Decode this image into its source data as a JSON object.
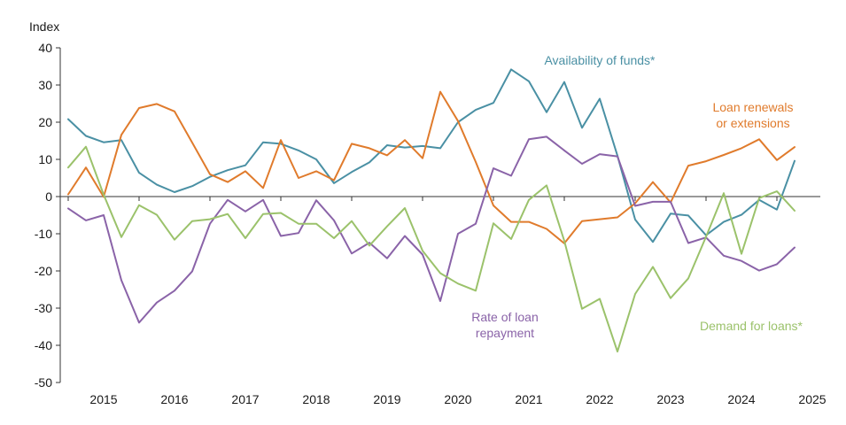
{
  "chart_data": {
    "type": "line",
    "ylabel": "Index",
    "ylim": [
      -50,
      40
    ],
    "yticks": [
      40,
      30,
      20,
      10,
      0,
      -10,
      -20,
      -30,
      -40,
      -50
    ],
    "year_labels": [
      "2015",
      "2016",
      "2017",
      "2018",
      "2019",
      "2020",
      "2021",
      "2022",
      "2023",
      "2024",
      "2025"
    ],
    "x_start": "2014 Q3",
    "x_frequency": "quarterly",
    "grid": false,
    "series": [
      {
        "name": "Availability of funds*",
        "color": "#4a90a4",
        "label_lines": [
          "Availability of funds*"
        ],
        "values": [
          20.8,
          16.3,
          14.6,
          15.2,
          6.4,
          3.2,
          1.2,
          2.8,
          5.3,
          7.1,
          8.4,
          14.6,
          14.2,
          12.4,
          10.0,
          3.6,
          6.6,
          9.2,
          13.8,
          13.2,
          13.6,
          13.0,
          20.0,
          23.3,
          25.2,
          34.2,
          31.0,
          22.7,
          30.8,
          18.5,
          26.3,
          11.0,
          -6.2,
          -12.2,
          -4.6,
          -5.1,
          -10.4,
          -6.8,
          -4.9,
          -0.9,
          -3.5,
          9.6
        ]
      },
      {
        "name": "Loan renewals or extensions",
        "color": "#e07b2c",
        "label_lines": [
          "Loan renewals",
          "or extensions"
        ],
        "values": [
          0.6,
          7.8,
          -0.1,
          16.6,
          23.8,
          24.9,
          22.9,
          14.5,
          6.0,
          3.9,
          6.8,
          2.3,
          15.2,
          5.0,
          6.8,
          4.4,
          14.2,
          13.0,
          11.1,
          15.2,
          10.3,
          28.2,
          20.3,
          9.3,
          -2.4,
          -6.8,
          -6.8,
          -8.7,
          -12.6,
          -6.6,
          -6.1,
          -5.6,
          -1.8,
          3.9,
          -1.6,
          8.3,
          9.5,
          11.2,
          13.0,
          15.4,
          9.8,
          13.3
        ]
      },
      {
        "name": "Rate of loan repayment",
        "color": "#8a63a8",
        "label_lines": [
          "Rate of loan",
          "repayment"
        ],
        "values": [
          -3.2,
          -6.4,
          -5.0,
          -22.5,
          -33.9,
          -28.5,
          -25.3,
          -20.1,
          -7.3,
          -0.9,
          -4.0,
          -0.9,
          -10.6,
          -9.8,
          -1.0,
          -6.4,
          -15.3,
          -12.4,
          -16.6,
          -10.6,
          -15.6,
          -28.1,
          -10.0,
          -7.3,
          7.6,
          5.6,
          15.4,
          16.1,
          12.4,
          8.8,
          11.4,
          10.8,
          -2.5,
          -1.4,
          -1.4,
          -12.5,
          -11.0,
          -15.9,
          -17.3,
          -19.9,
          -18.2,
          -13.7
        ]
      },
      {
        "name": "Demand for loans*",
        "color": "#9bc26b",
        "label_lines": [
          "Demand for loans*"
        ],
        "values": [
          7.8,
          13.4,
          0.5,
          -10.9,
          -2.3,
          -4.9,
          -11.6,
          -6.6,
          -6.1,
          -4.7,
          -11.2,
          -4.7,
          -4.4,
          -7.3,
          -7.3,
          -11.2,
          -6.6,
          -13.2,
          -8.0,
          -3.1,
          -14.6,
          -20.6,
          -23.4,
          -25.3,
          -7.2,
          -11.4,
          -0.9,
          3.0,
          -11.9,
          -30.2,
          -27.5,
          -41.7,
          -26.2,
          -18.9,
          -27.3,
          -22.0,
          -10.8,
          0.9,
          -15.4,
          -0.4,
          1.4,
          -3.8
        ]
      }
    ]
  }
}
